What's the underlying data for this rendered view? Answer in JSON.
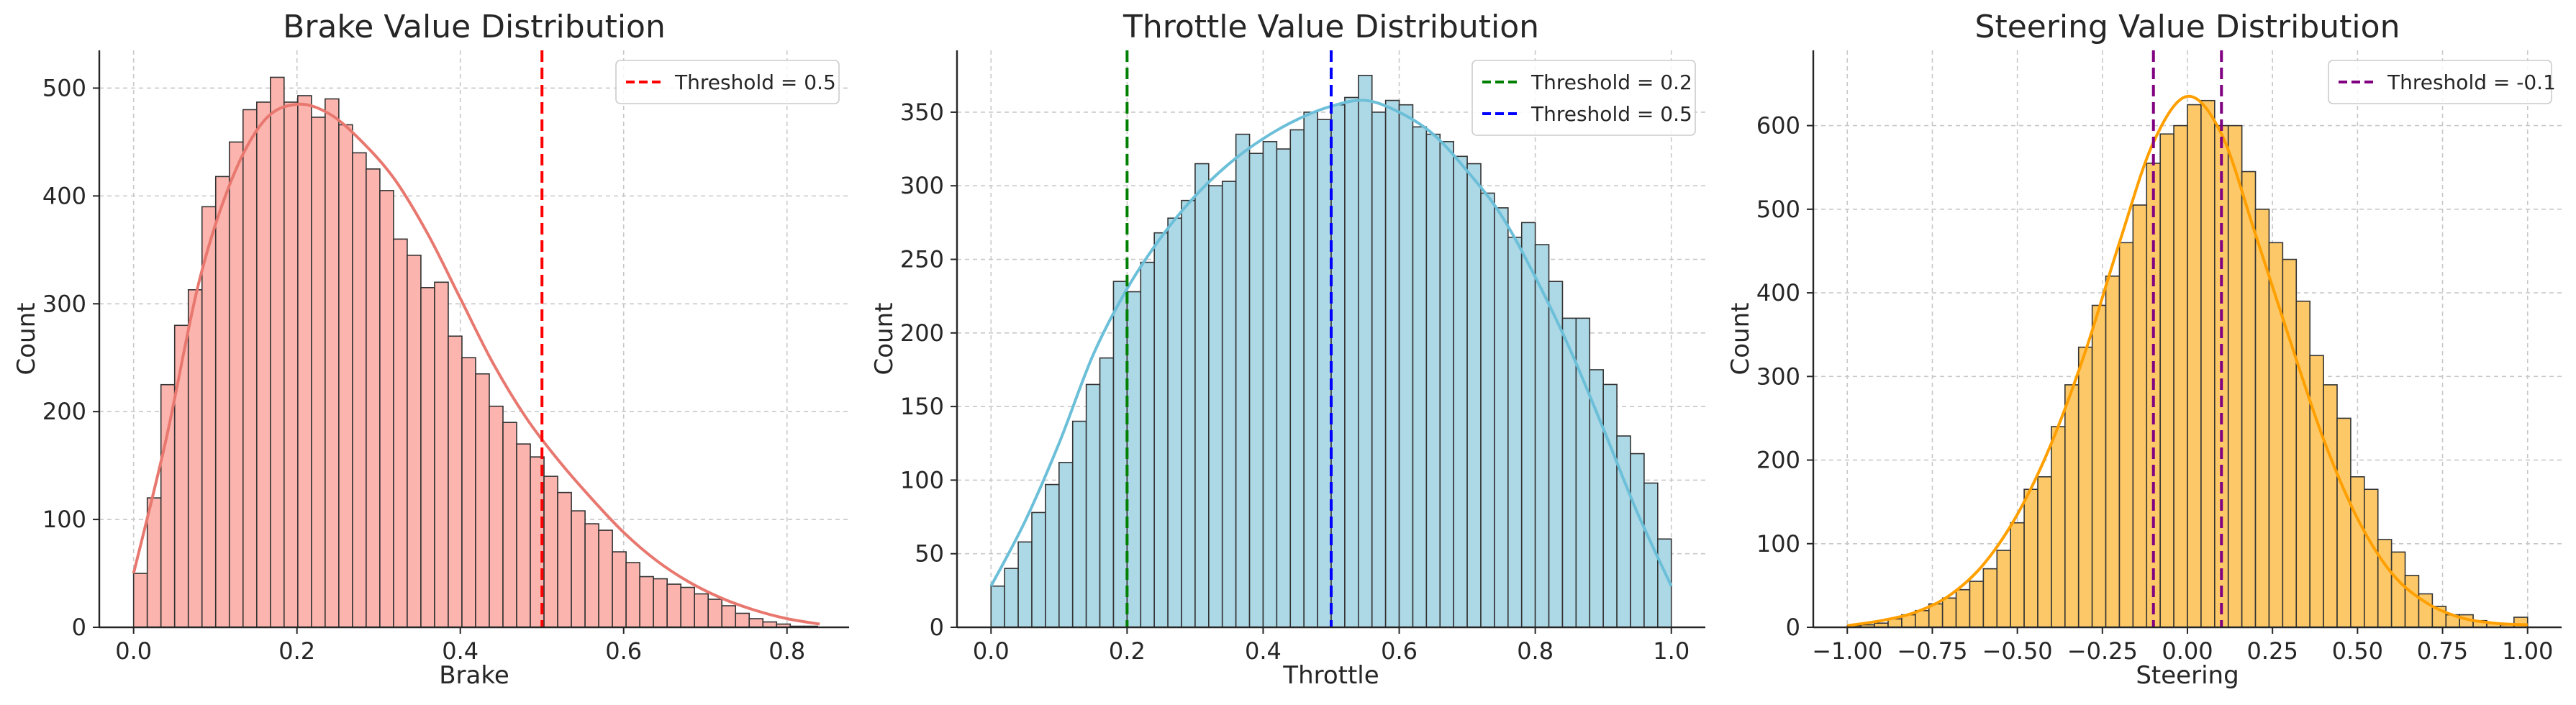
{
  "chart_data": [
    {
      "type": "bar",
      "title": "Brake Value Distribution",
      "xlabel": "Brake",
      "ylabel": "Count",
      "xlim": [
        -0.042,
        0.876
      ],
      "ylim": [
        0,
        535
      ],
      "xticks": [
        0.0,
        0.2,
        0.4,
        0.6,
        0.8
      ],
      "xtick_labels": [
        "0.0",
        "0.2",
        "0.4",
        "0.6",
        "0.8"
      ],
      "yticks": [
        0,
        100,
        200,
        300,
        400,
        500
      ],
      "ytick_labels": [
        "0",
        "100",
        "200",
        "300",
        "400",
        "500"
      ],
      "grid": true,
      "legend_position": "top-right",
      "bin_start": 0.0,
      "bin_width": 0.01675,
      "counts": [
        50,
        120,
        225,
        280,
        313,
        390,
        418,
        450,
        480,
        487,
        510,
        487,
        493,
        473,
        490,
        466,
        440,
        425,
        405,
        360,
        345,
        315,
        320,
        270,
        250,
        235,
        205,
        190,
        170,
        158,
        140,
        125,
        108,
        96,
        90,
        70,
        60,
        47,
        45,
        40,
        37,
        31,
        26,
        20,
        13,
        8,
        5,
        3,
        1,
        1
      ],
      "kde_x": [
        0.0,
        0.04,
        0.08,
        0.12,
        0.16,
        0.2,
        0.24,
        0.28,
        0.32,
        0.36,
        0.4,
        0.44,
        0.48,
        0.52,
        0.56,
        0.6,
        0.64,
        0.68,
        0.72,
        0.76,
        0.8,
        0.84
      ],
      "kde_y": [
        50,
        175,
        320,
        415,
        470,
        485,
        476,
        450,
        415,
        365,
        305,
        245,
        195,
        155,
        120,
        88,
        62,
        42,
        27,
        16,
        8,
        3
      ],
      "bar_fill": "#fbb4ae",
      "kde_color": "#e8786f",
      "thresholds": [
        {
          "label": "Threshold = 0.5",
          "x": 0.5,
          "color": "#ff0000"
        }
      ]
    },
    {
      "type": "bar",
      "title": "Throttle Value Distribution",
      "xlabel": "Throttle",
      "ylabel": "Count",
      "xlim": [
        -0.05,
        1.05
      ],
      "ylim": [
        0,
        392
      ],
      "xticks": [
        0.0,
        0.2,
        0.4,
        0.6,
        0.8,
        1.0
      ],
      "xtick_labels": [
        "0.0",
        "0.2",
        "0.4",
        "0.6",
        "0.8",
        "1.0"
      ],
      "yticks": [
        0,
        50,
        100,
        150,
        200,
        250,
        300,
        350
      ],
      "ytick_labels": [
        "0",
        "50",
        "100",
        "150",
        "200",
        "250",
        "300",
        "350"
      ],
      "grid": true,
      "legend_position": "top-right",
      "bin_start": 0.0,
      "bin_width": 0.02,
      "counts": [
        28,
        40,
        58,
        78,
        97,
        112,
        140,
        165,
        183,
        235,
        228,
        248,
        268,
        278,
        290,
        315,
        300,
        303,
        335,
        322,
        330,
        325,
        338,
        350,
        345,
        355,
        360,
        375,
        350,
        358,
        355,
        340,
        335,
        330,
        320,
        315,
        295,
        285,
        265,
        275,
        260,
        235,
        210,
        210,
        175,
        165,
        130,
        118,
        98,
        60
      ],
      "kde_x": [
        0.0,
        0.05,
        0.1,
        0.15,
        0.2,
        0.25,
        0.3,
        0.35,
        0.4,
        0.45,
        0.5,
        0.55,
        0.6,
        0.65,
        0.7,
        0.75,
        0.8,
        0.85,
        0.9,
        0.95,
        1.0
      ],
      "kde_y": [
        28,
        72,
        125,
        185,
        230,
        265,
        293,
        315,
        332,
        345,
        354,
        358,
        350,
        335,
        310,
        280,
        238,
        190,
        135,
        78,
        28
      ],
      "bar_fill": "#add8e6",
      "kde_color": "#6cbfd8",
      "thresholds": [
        {
          "label": "Threshold = 0.2",
          "x": 0.2,
          "color": "#008000"
        },
        {
          "label": "Threshold = 0.5",
          "x": 0.5,
          "color": "#0000ff"
        }
      ]
    },
    {
      "type": "bar",
      "title": "Steering Value Distribution",
      "xlabel": "Steering",
      "ylabel": "Count",
      "xlim": [
        -1.1,
        1.1
      ],
      "ylim": [
        0,
        690
      ],
      "xticks": [
        -1.0,
        -0.75,
        -0.5,
        -0.25,
        0.0,
        0.25,
        0.5,
        0.75,
        1.0
      ],
      "xtick_labels": [
        "−1.00",
        "−0.75",
        "−0.50",
        "−0.25",
        "0.00",
        "0.25",
        "0.50",
        "0.75",
        "1.00"
      ],
      "yticks": [
        0,
        100,
        200,
        300,
        400,
        500,
        600
      ],
      "ytick_labels": [
        "0",
        "100",
        "200",
        "300",
        "400",
        "500",
        "600"
      ],
      "grid": true,
      "legend_position": "top-right",
      "bin_start": -1.0,
      "bin_width": 0.04,
      "counts": [
        2,
        3,
        5,
        10,
        15,
        20,
        28,
        35,
        45,
        55,
        70,
        92,
        125,
        165,
        180,
        240,
        290,
        335,
        385,
        420,
        460,
        505,
        555,
        590,
        600,
        625,
        630,
        600,
        600,
        545,
        500,
        460,
        440,
        390,
        325,
        290,
        250,
        180,
        165,
        105,
        90,
        62,
        40,
        25,
        15,
        15,
        8,
        5,
        3,
        12
      ],
      "kde_x": [
        -1.0,
        -0.9,
        -0.8,
        -0.7,
        -0.6,
        -0.5,
        -0.4,
        -0.3,
        -0.2,
        -0.1,
        0.0,
        0.1,
        0.2,
        0.3,
        0.4,
        0.5,
        0.6,
        0.7,
        0.8,
        0.9,
        1.0
      ],
      "kde_y": [
        2,
        8,
        18,
        38,
        75,
        135,
        220,
        330,
        460,
        580,
        635,
        590,
        470,
        345,
        225,
        130,
        65,
        30,
        12,
        5,
        3
      ],
      "bar_fill": "#fdc968",
      "kde_color": "#ff9f00",
      "thresholds": [
        {
          "label": "Threshold = -0.1",
          "x": -0.1,
          "color": "#800080"
        },
        {
          "label": "",
          "x": 0.1,
          "color": "#800080"
        }
      ]
    }
  ]
}
